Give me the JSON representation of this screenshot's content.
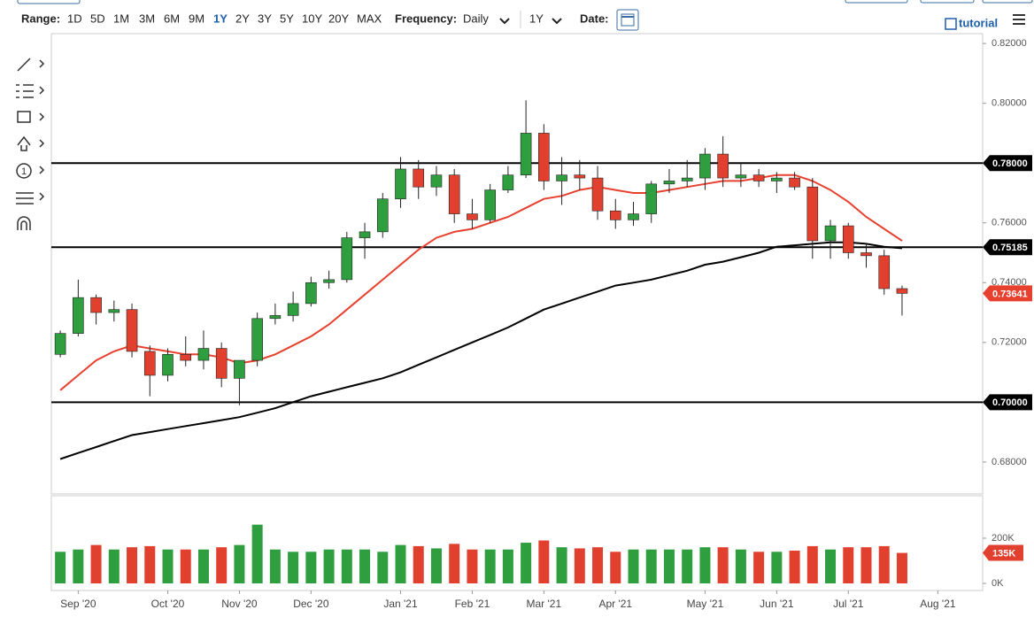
{
  "toolbar": {
    "range_label": "Range:",
    "ranges": [
      "1D",
      "5D",
      "1M",
      "3M",
      "6M",
      "9M",
      "1Y",
      "2Y",
      "3Y",
      "5Y",
      "10Y",
      "20Y",
      "MAX"
    ],
    "frequency_label": "Frequency:",
    "frequency": "Daily",
    "period": "1Y",
    "date_label": "Date:",
    "tutorial": "tutorial",
    "tool_counter": "1"
  },
  "chart_data": [
    {
      "type": "candlestick",
      "categories": [
        null,
        "Sep '20",
        null,
        null,
        null,
        null,
        "Oct '20",
        null,
        null,
        null,
        "Nov '20",
        null,
        null,
        null,
        "Dec '20",
        null,
        null,
        null,
        null,
        "Jan '21",
        null,
        null,
        null,
        "Feb '21",
        null,
        null,
        null,
        "Mar '21",
        null,
        null,
        null,
        "Apr '21",
        null,
        null,
        null,
        null,
        "May '21",
        null,
        null,
        null,
        "Jun '21",
        null,
        null,
        null,
        "Jul '21",
        null,
        null,
        null,
        null,
        "Aug '21",
        null,
        null
      ],
      "open": [
        0.716,
        0.723,
        0.735,
        0.73,
        0.731,
        0.717,
        0.709,
        0.716,
        0.714,
        0.718,
        0.708,
        0.714,
        0.728,
        0.729,
        0.733,
        0.74,
        0.741,
        0.755,
        0.757,
        0.768,
        0.778,
        0.772,
        0.776,
        0.763,
        0.761,
        0.771,
        0.776,
        0.79,
        0.774,
        0.776,
        0.775,
        0.764,
        0.761,
        0.763,
        0.773,
        0.774,
        0.775,
        0.783,
        0.775,
        0.776,
        0.774,
        0.775,
        0.772,
        0.754,
        0.759,
        0.75,
        0.749,
        0.738,
        null,
        null,
        null,
        null
      ],
      "high": [
        0.724,
        0.741,
        0.736,
        0.734,
        0.733,
        0.719,
        0.718,
        0.722,
        0.724,
        0.72,
        0.714,
        0.73,
        0.733,
        0.737,
        0.742,
        0.744,
        0.757,
        0.76,
        0.77,
        0.782,
        0.781,
        0.779,
        0.778,
        0.768,
        0.773,
        0.779,
        0.801,
        0.793,
        0.782,
        0.781,
        0.779,
        0.768,
        0.767,
        0.774,
        0.778,
        0.781,
        0.785,
        0.789,
        0.78,
        0.778,
        0.777,
        0.777,
        0.775,
        0.761,
        0.76,
        0.753,
        0.751,
        0.739,
        null,
        null,
        null,
        null
      ],
      "low": [
        0.715,
        0.722,
        0.726,
        0.727,
        0.715,
        0.702,
        0.707,
        0.712,
        0.711,
        0.705,
        0.699,
        0.712,
        0.726,
        0.727,
        0.732,
        0.738,
        0.74,
        0.748,
        0.755,
        0.765,
        0.768,
        0.769,
        0.76,
        0.758,
        0.76,
        0.77,
        0.775,
        0.771,
        0.766,
        0.771,
        0.761,
        0.758,
        0.759,
        0.76,
        0.77,
        0.772,
        0.771,
        0.772,
        0.772,
        0.772,
        0.77,
        0.771,
        0.748,
        0.748,
        0.748,
        0.745,
        0.736,
        0.729,
        null,
        null,
        null,
        null
      ],
      "close": [
        0.723,
        0.735,
        0.73,
        0.731,
        0.717,
        0.709,
        0.716,
        0.714,
        0.718,
        0.708,
        0.714,
        0.728,
        0.729,
        0.733,
        0.74,
        0.741,
        0.755,
        0.757,
        0.768,
        0.778,
        0.772,
        0.776,
        0.763,
        0.761,
        0.771,
        0.776,
        0.79,
        0.774,
        0.776,
        0.775,
        0.764,
        0.761,
        0.763,
        0.773,
        0.774,
        0.775,
        0.783,
        0.775,
        0.776,
        0.774,
        0.775,
        0.772,
        0.754,
        0.759,
        0.75,
        0.749,
        0.738,
        0.73641,
        null,
        null,
        null,
        null
      ],
      "up_color": "#2e9e3e",
      "down_color": "#e2402f",
      "lines": [
        {
          "color": "#e8402f",
          "values": [
            0.704,
            0.709,
            0.714,
            0.717,
            0.719,
            0.718,
            0.717,
            0.716,
            0.716,
            0.715,
            0.713,
            0.714,
            0.716,
            0.719,
            0.722,
            0.726,
            0.731,
            0.736,
            0.741,
            0.746,
            0.751,
            0.755,
            0.757,
            0.758,
            0.76,
            0.762,
            0.765,
            0.768,
            0.769,
            0.771,
            0.772,
            0.771,
            0.77,
            0.77,
            0.771,
            0.772,
            0.773,
            0.774,
            0.774,
            0.775,
            0.776,
            0.776,
            0.774,
            0.771,
            0.767,
            0.762,
            0.758,
            0.754,
            null,
            null,
            null,
            null
          ]
        },
        {
          "color": "#000000",
          "values": [
            0.681,
            0.683,
            0.685,
            0.687,
            0.689,
            0.69,
            0.691,
            0.692,
            0.693,
            0.694,
            0.695,
            0.6965,
            0.698,
            0.7,
            0.702,
            0.7035,
            0.705,
            0.7065,
            0.708,
            0.71,
            0.7125,
            0.715,
            0.7175,
            0.72,
            0.7225,
            0.725,
            0.728,
            0.731,
            0.733,
            0.735,
            0.737,
            0.739,
            0.74,
            0.741,
            0.7425,
            0.744,
            0.746,
            0.747,
            0.7485,
            0.75,
            0.752,
            0.7525,
            0.753,
            0.7535,
            0.7535,
            0.753,
            0.752,
            0.7515,
            null,
            null,
            null,
            null
          ]
        }
      ],
      "hlines": [
        {
          "value": 0.78,
          "label": "0.78000"
        },
        {
          "value": 0.75185,
          "label": "0.75185"
        },
        {
          "value": 0.7,
          "label": "0.70000"
        }
      ],
      "last_price_label": "0.73641",
      "last_price_color": "#e8402f",
      "ylim": [
        0.6693,
        0.8227
      ],
      "yticks": [
        {
          "value": 0.82,
          "label": "0.82000"
        },
        {
          "value": 0.8,
          "label": "0.80000"
        },
        {
          "value": 0.78,
          "label": "0.78000"
        },
        {
          "value": 0.76,
          "label": "0.76000"
        },
        {
          "value": 0.74,
          "label": "0.74000"
        },
        {
          "value": 0.72,
          "label": "0.72000"
        },
        {
          "value": 0.7,
          "label": "0.70000"
        },
        {
          "value": 0.68,
          "label": "0.68000"
        }
      ]
    },
    {
      "type": "bar",
      "values": [
        140000,
        150000,
        170000,
        150000,
        160000,
        165000,
        150000,
        150000,
        150000,
        160000,
        170000,
        260000,
        150000,
        140000,
        140000,
        150000,
        150000,
        150000,
        140000,
        170000,
        165000,
        155000,
        175000,
        150000,
        150000,
        150000,
        180000,
        190000,
        160000,
        155000,
        160000,
        140000,
        150000,
        150000,
        150000,
        150000,
        160000,
        160000,
        150000,
        140000,
        140000,
        145000,
        165000,
        150000,
        160000,
        160000,
        165000,
        135000,
        null,
        null,
        null,
        null
      ],
      "value_labels": [
        null,
        null,
        null,
        null,
        null,
        null,
        null,
        null,
        null,
        null,
        null,
        null,
        null,
        null,
        null,
        null,
        null,
        null,
        null,
        null,
        null,
        null,
        null,
        null,
        null,
        null,
        null,
        null,
        null,
        null,
        null,
        null,
        null,
        null,
        null,
        null,
        null,
        null,
        null,
        null,
        null,
        null,
        null,
        null,
        null,
        null,
        null,
        "135K",
        null,
        null,
        null,
        null
      ],
      "ylim": [
        0,
        388000
      ],
      "yticks": [
        {
          "value": 200000,
          "label": "200K"
        },
        {
          "value": 0,
          "label": "0K"
        }
      ]
    }
  ]
}
